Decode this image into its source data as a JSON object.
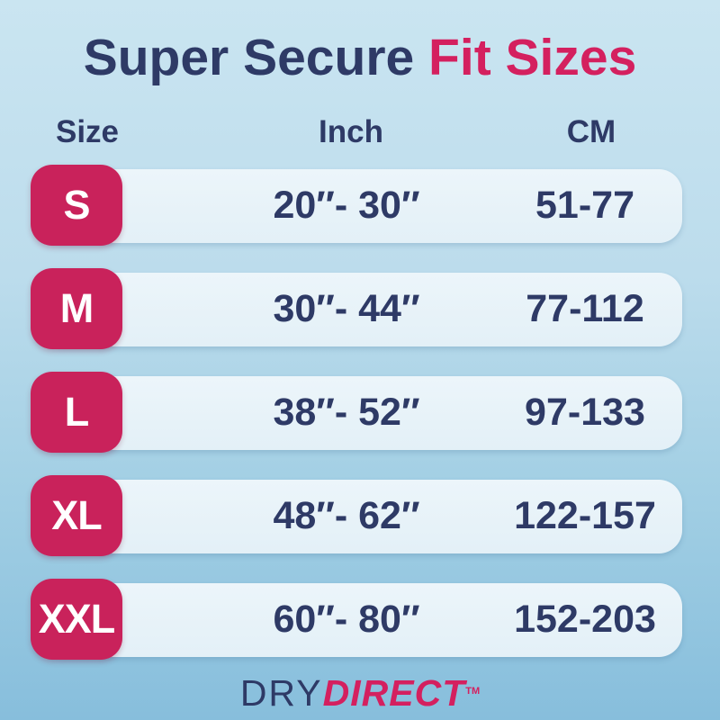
{
  "title": {
    "part1": "Super Secure ",
    "part2": "Fit Sizes"
  },
  "table": {
    "headers": {
      "size": "Size",
      "inch": "Inch",
      "cm": "CM"
    },
    "rows": [
      {
        "size": "S",
        "inch": "20″- 30″",
        "cm": "51-77"
      },
      {
        "size": "M",
        "inch": "30″- 44″",
        "cm": "77-112"
      },
      {
        "size": "L",
        "inch": "38″- 52″",
        "cm": "97-133"
      },
      {
        "size": "XL",
        "inch": "48″- 62″",
        "cm": "122-157"
      },
      {
        "size": "XXL",
        "inch": "60″- 80″",
        "cm": "152-203"
      }
    ]
  },
  "logo": {
    "part1": "DRY",
    "part2": "DIRECT",
    "tm": "TM"
  },
  "colors": {
    "navy": "#2e3a66",
    "pink_accent": "#d4205f",
    "badge_pink": "#c9225b",
    "bar_fill": "#e8f2f8",
    "background_top": "#cae5f1",
    "background_bottom": "#87bedc"
  }
}
